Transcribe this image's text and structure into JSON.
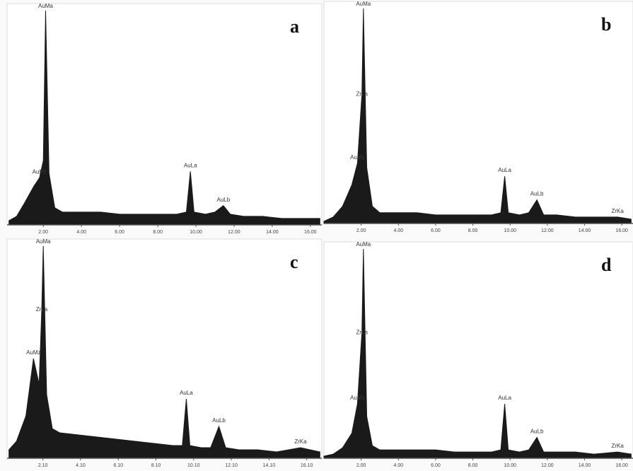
{
  "chart_data": [
    {
      "type": "area",
      "panel": "a",
      "color": "#1a1a1a",
      "x": [
        0.2,
        0.6,
        1.0,
        1.5,
        1.8,
        2.0,
        2.12,
        2.3,
        2.6,
        3.0,
        4.0,
        5.0,
        6.0,
        7.0,
        8.0,
        9.0,
        9.5,
        9.71,
        9.9,
        10.5,
        11.0,
        11.44,
        11.8,
        12.5,
        13.5,
        14.5,
        15.5,
        16.5
      ],
      "values": [
        2,
        4,
        10,
        18,
        22,
        30,
        100,
        24,
        8,
        6,
        6,
        6,
        5,
        5,
        5,
        5,
        6,
        25,
        6,
        5,
        6,
        9,
        5,
        4,
        4,
        3,
        3,
        3
      ],
      "annotations": [
        {
          "text": "AuMa",
          "x": 2.12
        },
        {
          "text": "AuMz",
          "x": 1.8
        },
        {
          "text": "AuLa",
          "x": 9.71
        },
        {
          "text": "AuLb",
          "x": 11.44
        }
      ],
      "xlim": [
        0.1,
        16.6
      ],
      "ylim": [
        0,
        100
      ],
      "xticks": [
        {
          "value": 2,
          "label": "2.00"
        },
        {
          "value": 4,
          "label": "4.00"
        },
        {
          "value": 6,
          "label": "6.00"
        },
        {
          "value": 8,
          "label": "8.00"
        },
        {
          "value": 10,
          "label": "10.00"
        },
        {
          "value": 12,
          "label": "12.00"
        },
        {
          "value": 14,
          "label": "14.00"
        },
        {
          "value": 16,
          "label": "16.00"
        }
      ]
    },
    {
      "type": "area",
      "panel": "b",
      "color": "#1a1a1a",
      "x": [
        0.0,
        0.5,
        1.0,
        1.5,
        1.8,
        2.04,
        2.12,
        2.3,
        2.6,
        3.0,
        4.0,
        5.0,
        6.0,
        7.0,
        8.0,
        9.0,
        9.5,
        9.71,
        9.9,
        10.5,
        11.0,
        11.44,
        11.8,
        12.5,
        13.5,
        14.5,
        15.77,
        16.5
      ],
      "values": [
        1,
        3,
        8,
        18,
        28,
        60,
        100,
        26,
        8,
        5,
        5,
        5,
        4,
        4,
        4,
        4,
        5,
        22,
        5,
        4,
        5,
        11,
        4,
        4,
        3,
        3,
        3,
        2
      ],
      "annotations": [
        {
          "text": "AuMa",
          "x": 2.12
        },
        {
          "text": "ZrLa",
          "x": 2.04
        },
        {
          "text": "AuMz",
          "x": 1.8
        },
        {
          "text": "AuLa",
          "x": 9.71
        },
        {
          "text": "AuLb",
          "x": 11.44
        },
        {
          "text": "ZrKa",
          "x": 15.77
        }
      ],
      "xlim": [
        0,
        16.6
      ],
      "ylim": [
        0,
        100
      ],
      "xticks": [
        {
          "value": 2,
          "label": "2.00"
        },
        {
          "value": 4,
          "label": "4.00"
        },
        {
          "value": 6,
          "label": "6.00"
        },
        {
          "value": 8,
          "label": "8.00"
        },
        {
          "value": 10,
          "label": "10.00"
        },
        {
          "value": 12,
          "label": "12.00"
        },
        {
          "value": 14,
          "label": "14.00"
        },
        {
          "value": 16,
          "label": "16.00"
        }
      ]
    },
    {
      "type": "area",
      "panel": "c",
      "color": "#1a1a1a",
      "x": [
        0.3,
        0.7,
        1.2,
        1.6,
        1.9,
        2.04,
        2.12,
        2.3,
        2.6,
        3.0,
        4.0,
        5.0,
        6.0,
        7.0,
        8.0,
        9.0,
        9.5,
        9.71,
        9.9,
        10.5,
        11.0,
        11.44,
        11.8,
        12.5,
        13.5,
        14.5,
        15.77,
        16.8
      ],
      "values": [
        4,
        8,
        20,
        47,
        35,
        70,
        100,
        30,
        14,
        12,
        11,
        10,
        9,
        8,
        7,
        6,
        6,
        28,
        6,
        5,
        5,
        15,
        5,
        4,
        4,
        3,
        5,
        3
      ],
      "annotations": [
        {
          "text": "AuMa",
          "x": 2.12
        },
        {
          "text": "ZrLa",
          "x": 2.04
        },
        {
          "text": "AuMz",
          "x": 1.6
        },
        {
          "text": "AuLa",
          "x": 9.71
        },
        {
          "text": "AuLb",
          "x": 11.44
        },
        {
          "text": "ZrKa",
          "x": 15.77
        }
      ],
      "xlim": [
        0.2,
        16.9
      ],
      "ylim": [
        0,
        100
      ],
      "xticks": [
        {
          "value": 2.1,
          "label": "2.10"
        },
        {
          "value": 4.1,
          "label": "4.10"
        },
        {
          "value": 6.1,
          "label": "6.10"
        },
        {
          "value": 8.1,
          "label": "8.10"
        },
        {
          "value": 10.1,
          "label": "10.10"
        },
        {
          "value": 12.1,
          "label": "12.10"
        },
        {
          "value": 14.1,
          "label": "14.10"
        },
        {
          "value": 16.1,
          "label": "16.10"
        }
      ]
    },
    {
      "type": "area",
      "panel": "d",
      "color": "#1a1a1a",
      "x": [
        0.0,
        0.5,
        1.0,
        1.5,
        1.8,
        2.04,
        2.12,
        2.3,
        2.6,
        3.0,
        4.0,
        5.0,
        6.0,
        7.0,
        8.0,
        9.0,
        9.5,
        9.71,
        9.9,
        10.5,
        11.0,
        11.44,
        11.8,
        12.5,
        13.5,
        14.5,
        15.77,
        16.5
      ],
      "values": [
        1,
        2,
        5,
        12,
        26,
        60,
        100,
        20,
        6,
        4,
        4,
        4,
        4,
        3,
        3,
        3,
        4,
        26,
        4,
        3,
        4,
        10,
        3,
        3,
        3,
        2,
        3,
        2
      ],
      "annotations": [
        {
          "text": "AuMa",
          "x": 2.12
        },
        {
          "text": "ZrLa",
          "x": 2.04
        },
        {
          "text": "AuMz",
          "x": 1.8
        },
        {
          "text": "AuLa",
          "x": 9.71
        },
        {
          "text": "AuLb",
          "x": 11.44
        },
        {
          "text": "ZrKa",
          "x": 15.77
        }
      ],
      "xlim": [
        0,
        16.6
      ],
      "ylim": [
        0,
        100
      ],
      "xticks": [
        {
          "value": 2,
          "label": "2.00"
        },
        {
          "value": 4,
          "label": "4.00"
        },
        {
          "value": 6,
          "label": "6.00"
        },
        {
          "value": 8,
          "label": "8.00"
        },
        {
          "value": 10,
          "label": "10.00"
        },
        {
          "value": 12,
          "label": "12.00"
        },
        {
          "value": 14,
          "label": "14.00"
        },
        {
          "value": 16,
          "label": "16.00"
        }
      ]
    }
  ]
}
